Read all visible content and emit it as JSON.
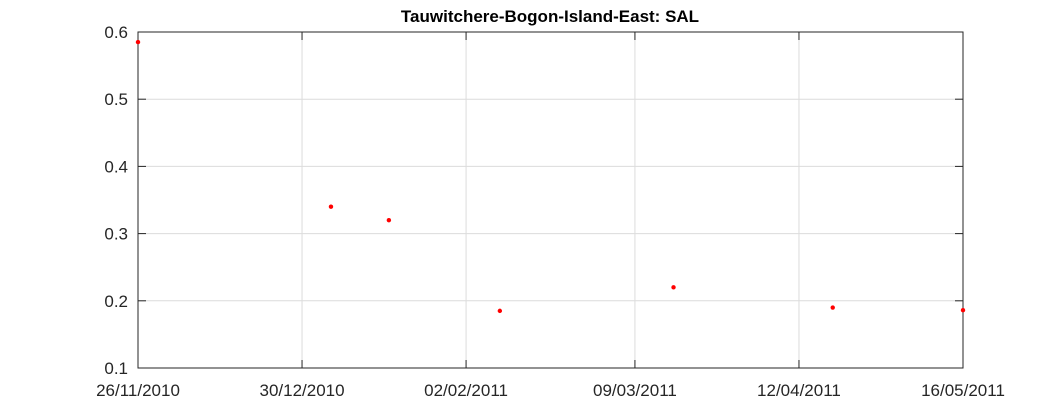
{
  "chart_data": {
    "type": "scatter",
    "title": "Tauwitchere-Bogon-Island-East: SAL",
    "xlabel": "",
    "ylabel": "",
    "x_ticks": [
      "26/11/2010",
      "30/12/2010",
      "02/02/2011",
      "09/03/2011",
      "12/04/2011",
      "16/05/2011"
    ],
    "xlim": [
      "2010-11-26",
      "2011-05-16"
    ],
    "ylim": [
      0.1,
      0.6
    ],
    "y_ticks": [
      "0.1",
      "0.2",
      "0.3",
      "0.4",
      "0.5",
      "0.6"
    ],
    "grid": true,
    "marker_color": "#ff0000",
    "points": [
      {
        "x": "2010-11-26",
        "y": 0.585
      },
      {
        "x": "2011-01-05",
        "y": 0.34
      },
      {
        "x": "2011-01-17",
        "y": 0.32
      },
      {
        "x": "2011-02-09",
        "y": 0.185
      },
      {
        "x": "2011-03-17",
        "y": 0.22
      },
      {
        "x": "2011-04-19",
        "y": 0.19
      },
      {
        "x": "2011-05-16",
        "y": 0.186
      }
    ]
  }
}
